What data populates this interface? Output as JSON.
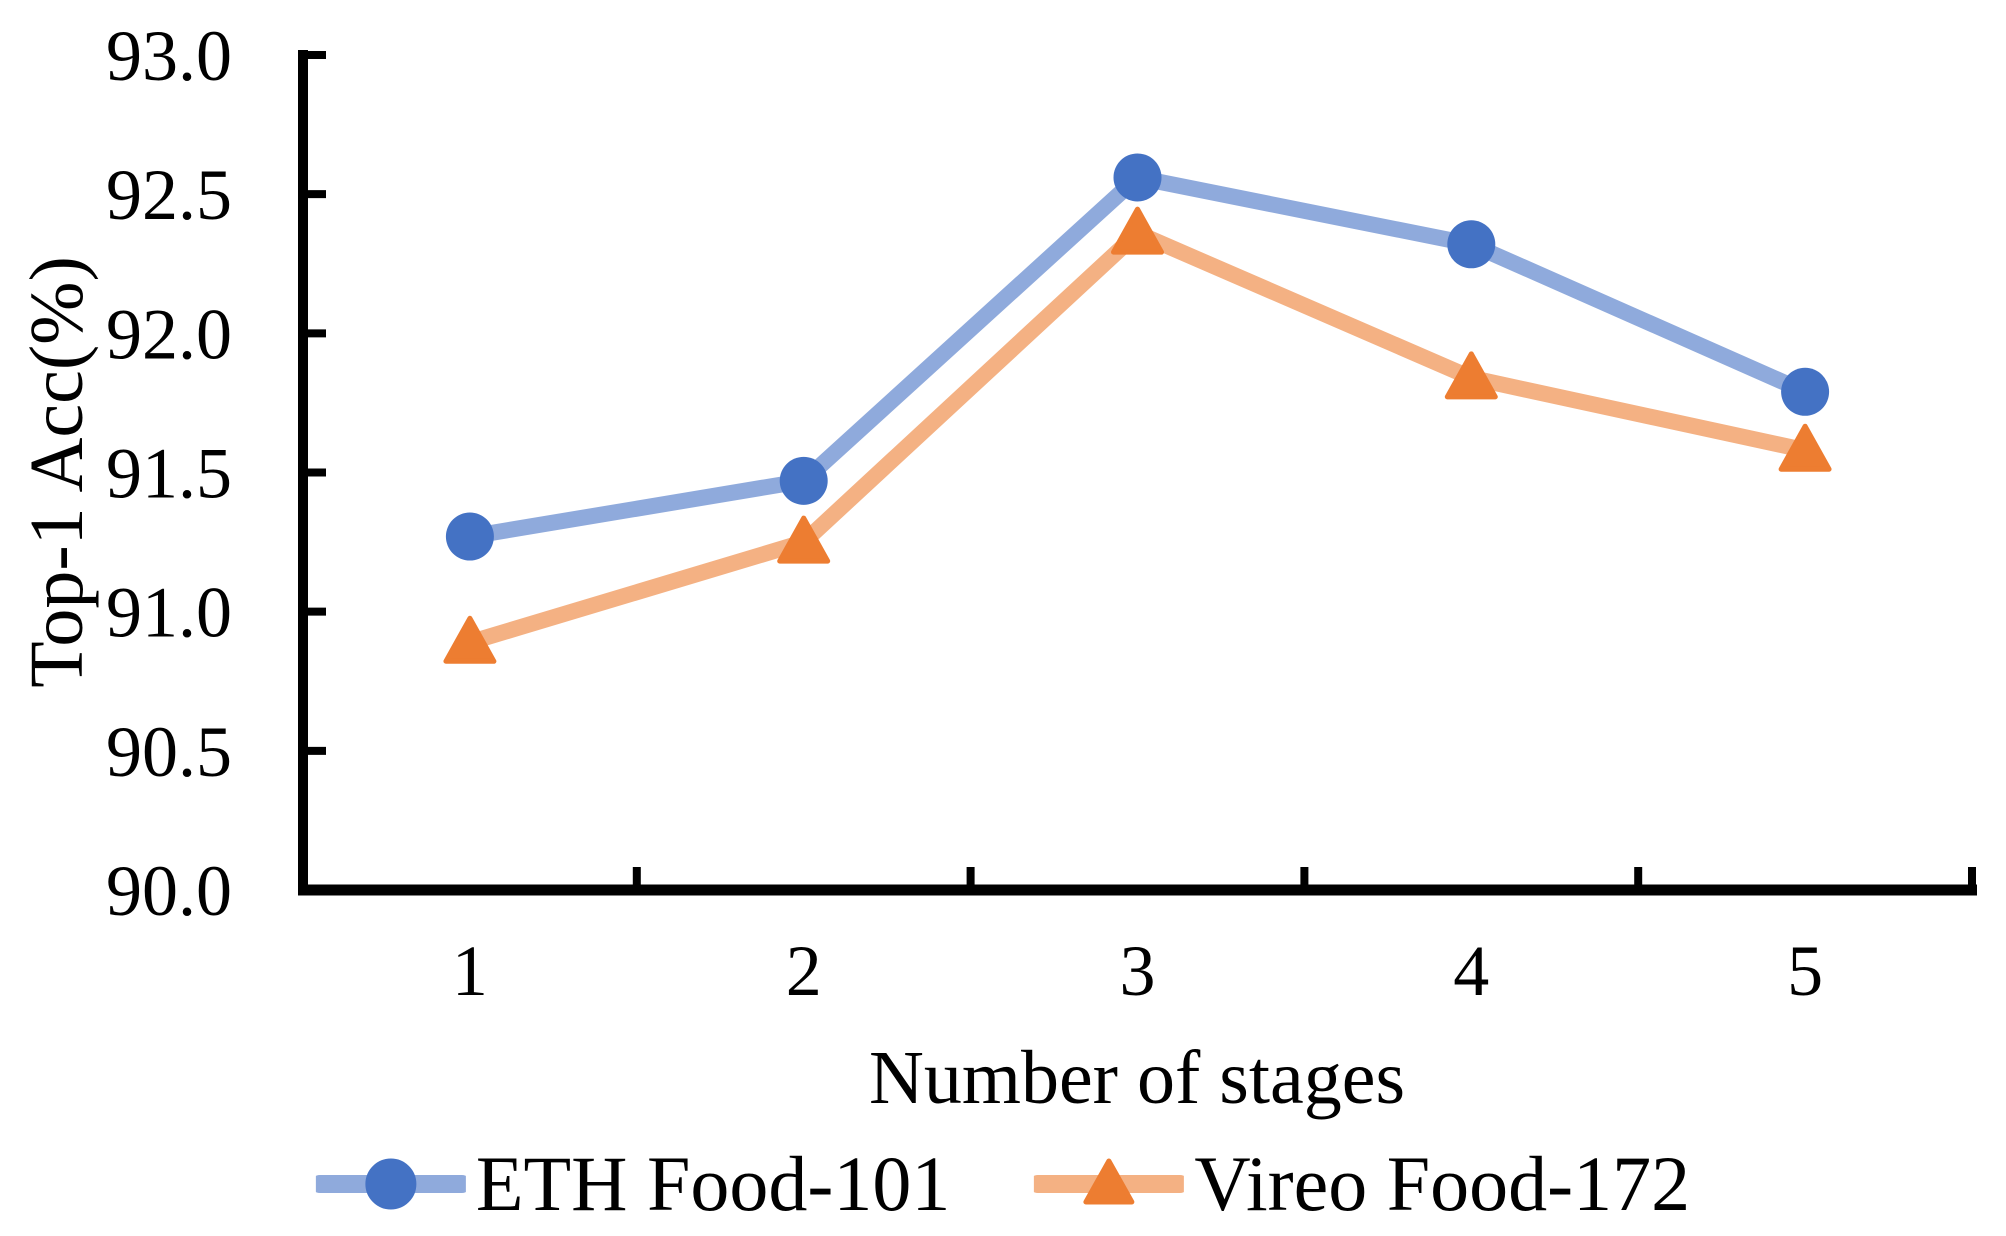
{
  "page": {
    "background_color": "#ffffff",
    "text_color": "#000000",
    "axis_color": "#000000"
  },
  "chart_data": {
    "type": "line",
    "title": "",
    "xlabel": "Number of stages",
    "ylabel": "Top-1 Acc(%)",
    "categories": [
      "1",
      "2",
      "3",
      "4",
      "5"
    ],
    "ylim": [
      90.0,
      93.0
    ],
    "y_tick_step": 0.5,
    "y_tick_labels": [
      "90.0",
      "90.5",
      "91.0",
      "91.5",
      "92.0",
      "92.5",
      "93.0"
    ],
    "grid": false,
    "legend_position": "bottom-center",
    "series": [
      {
        "name": "ETH Food-101",
        "marker": "circle",
        "marker_color": "#4472C4",
        "line_color": "#8FAADC",
        "values": [
          91.27,
          91.47,
          92.56,
          92.32,
          91.79
        ]
      },
      {
        "name": "Vireo Food-172",
        "marker": "triangle",
        "marker_color": "#ED7D31",
        "line_color": "#F4B183",
        "values": [
          90.89,
          91.25,
          92.36,
          91.84,
          91.58
        ]
      }
    ]
  }
}
